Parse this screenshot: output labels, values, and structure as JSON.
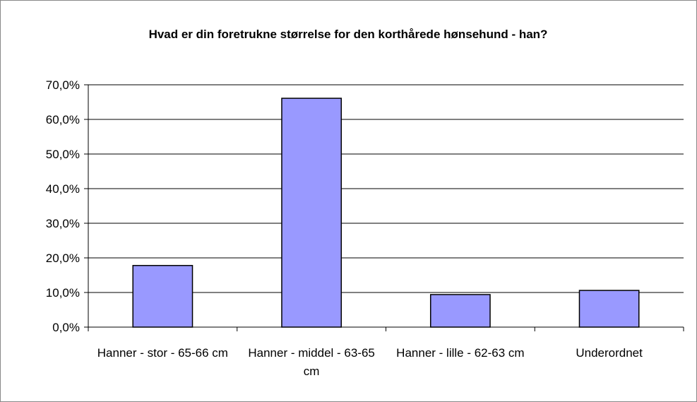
{
  "chart_data": {
    "type": "bar",
    "title": "Hvad er din foretrukne størrelse for den korthårede hønsehund - han?",
    "categories": [
      "Hanner - stor -  65-66 cm",
      "Hanner - middel - 63-65 cm",
      "Hanner -  lille  - 62-63 cm",
      "Underordnet"
    ],
    "values": [
      17.8,
      66.1,
      9.4,
      10.6
    ],
    "color": "#9999ff",
    "ylim": [
      0,
      70
    ],
    "yticks": [
      {
        "value": 0,
        "label": "0,0%"
      },
      {
        "value": 10,
        "label": "10,0%"
      },
      {
        "value": 20,
        "label": "20,0%"
      },
      {
        "value": 30,
        "label": "30,0%"
      },
      {
        "value": 40,
        "label": "40,0%"
      },
      {
        "value": 50,
        "label": "50,0%"
      },
      {
        "value": 60,
        "label": "60,0%"
      },
      {
        "value": 70,
        "label": "70,0%"
      }
    ],
    "grid": true
  }
}
